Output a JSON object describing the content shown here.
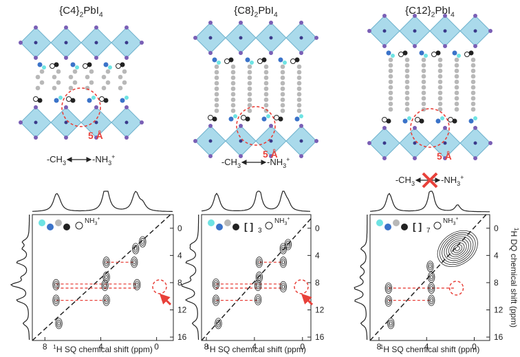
{
  "x_label": [
    {
      "text": "1",
      "pos": "sup"
    },
    {
      "text": "H SQ chemical shift (ppm)"
    }
  ],
  "y_label": [
    {
      "text": "1",
      "pos": "sup"
    },
    {
      "text": "H DQ chemical shift (ppm)"
    }
  ],
  "ylim": [
    -2,
    16.5
  ],
  "yticks": [
    0,
    4,
    8,
    12,
    16
  ],
  "panels": [
    {
      "title": [
        {
          "text": "{C4}"
        },
        {
          "text": "2",
          "pos": "sub"
        },
        {
          "text": "PbI"
        },
        {
          "text": "4",
          "pos": "sub"
        }
      ],
      "distance": "5 Å",
      "left": [
        {
          "text": "-CH"
        },
        {
          "text": "3",
          "pos": "sub"
        }
      ],
      "right": [
        {
          "text": "-NH"
        },
        {
          "text": "3",
          "pos": "sub"
        },
        {
          "text": "+",
          "pos": "sup"
        }
      ],
      "nh3": [
        {
          "text": "NH"
        },
        {
          "text": "3",
          "pos": "sub"
        },
        {
          "text": "+",
          "pos": "sup"
        }
      ],
      "xlim": [
        8.9,
        -1.2
      ],
      "xticks": [
        8,
        4,
        0
      ],
      "peaks": [
        {
          "x": 7,
          "y": 14
        },
        {
          "x": 3.6,
          "y": 7.2
        },
        {
          "x": 1.5,
          "y": 3
        },
        {
          "x": 1,
          "y": 2
        },
        {
          "x": 7.2,
          "y": 8.3
        },
        {
          "x": 7.2,
          "y": 10.6
        },
        {
          "x": 3.7,
          "y": 8.4
        },
        {
          "x": 3.6,
          "y": 10.6
        },
        {
          "x": 1.4,
          "y": 8.3
        },
        {
          "x": 3.6,
          "y": 5
        },
        {
          "x": 1.6,
          "y": 5
        }
      ],
      "links": [
        [
          5,
          3.6,
          1.6
        ],
        [
          8.2,
          7.2,
          1.4
        ],
        [
          8.8,
          7.2,
          1.4
        ],
        [
          10.6,
          7.2,
          3.6
        ]
      ]
    },
    {
      "title": [
        {
          "text": "{C8}"
        },
        {
          "text": "2",
          "pos": "sub"
        },
        {
          "text": "PbI"
        },
        {
          "text": "4",
          "pos": "sub"
        }
      ],
      "distance": "5 Å",
      "left": [
        {
          "text": "-CH"
        },
        {
          "text": "3",
          "pos": "sub"
        }
      ],
      "right": [
        {
          "text": "-NH"
        },
        {
          "text": "3",
          "pos": "sub"
        },
        {
          "text": "+",
          "pos": "sup"
        }
      ],
      "nh3": [
        {
          "text": "NH"
        },
        {
          "text": "3",
          "pos": "sub"
        },
        {
          "text": "+",
          "pos": "sup"
        }
      ],
      "repeat": "3",
      "xlim": [
        8.4,
        -0.7
      ],
      "xticks": [
        8,
        4,
        0
      ],
      "peaks": [
        {
          "x": 7,
          "y": 14
        },
        {
          "x": 3.6,
          "y": 7.2
        },
        {
          "x": 1.6,
          "y": 3
        },
        {
          "x": 1.2,
          "y": 2.4
        },
        {
          "x": 7.2,
          "y": 8.2
        },
        {
          "x": 7.2,
          "y": 10.6
        },
        {
          "x": 3.7,
          "y": 8.4
        },
        {
          "x": 3.7,
          "y": 10.5
        },
        {
          "x": 1.6,
          "y": 8.6
        },
        {
          "x": 3.6,
          "y": 5
        },
        {
          "x": 1.6,
          "y": 5
        }
      ],
      "links": [
        [
          5,
          3.6,
          1.6
        ],
        [
          8.2,
          7.2,
          1.6
        ],
        [
          8.8,
          7.2,
          1.6
        ],
        [
          10.6,
          7.2,
          3.7
        ]
      ]
    },
    {
      "title": [
        {
          "text": "{C12}"
        },
        {
          "text": "2",
          "pos": "sub"
        },
        {
          "text": "PbI"
        },
        {
          "text": "4",
          "pos": "sub"
        }
      ],
      "distance": "5 Å",
      "left": [
        {
          "text": "-CH"
        },
        {
          "text": "3",
          "pos": "sub"
        }
      ],
      "right": [
        {
          "text": "-NH"
        },
        {
          "text": "3",
          "pos": "sub"
        },
        {
          "text": "+",
          "pos": "sup"
        }
      ],
      "nh3": [
        {
          "text": "NH"
        },
        {
          "text": "3",
          "pos": "sub"
        },
        {
          "text": "+",
          "pos": "sup"
        }
      ],
      "repeat": "7",
      "xlim": [
        8.75,
        -1.3
      ],
      "xticks": [
        8,
        4,
        0
      ],
      "peaks": [
        {
          "x": 7,
          "y": 14
        },
        {
          "x": 3.6,
          "y": 7.2
        },
        {
          "x": 1.4,
          "y": 3
        },
        {
          "x": 7.2,
          "y": 8.8
        },
        {
          "x": 7.2,
          "y": 10.7
        },
        {
          "x": 3.6,
          "y": 8.8
        },
        {
          "x": 3.6,
          "y": 10.6
        },
        {
          "x": 3.7,
          "y": 5.6
        }
      ],
      "links": [
        [
          8.8,
          7.2,
          1.6
        ],
        [
          10.6,
          7.2,
          3.6
        ]
      ]
    }
  ]
}
